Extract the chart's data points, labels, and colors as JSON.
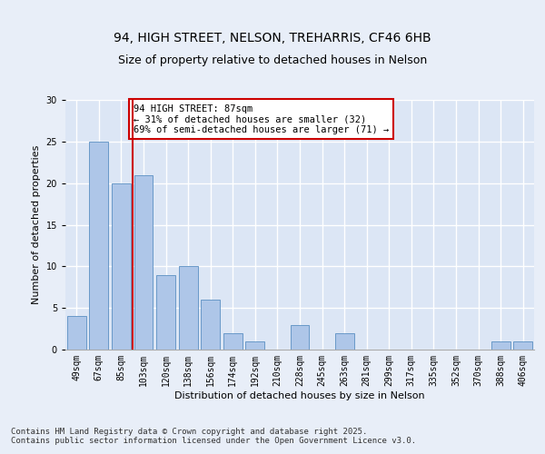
{
  "title_line1": "94, HIGH STREET, NELSON, TREHARRIS, CF46 6HB",
  "title_line2": "Size of property relative to detached houses in Nelson",
  "xlabel": "Distribution of detached houses by size in Nelson",
  "ylabel": "Number of detached properties",
  "bar_labels": [
    "49sqm",
    "67sqm",
    "85sqm",
    "103sqm",
    "120sqm",
    "138sqm",
    "156sqm",
    "174sqm",
    "192sqm",
    "210sqm",
    "228sqm",
    "245sqm",
    "263sqm",
    "281sqm",
    "299sqm",
    "317sqm",
    "335sqm",
    "352sqm",
    "370sqm",
    "388sqm",
    "406sqm"
  ],
  "bar_values": [
    4,
    25,
    20,
    21,
    9,
    10,
    6,
    2,
    1,
    0,
    3,
    0,
    2,
    0,
    0,
    0,
    0,
    0,
    0,
    1,
    1
  ],
  "bar_color": "#aec6e8",
  "bar_edge_color": "#5a8fc2",
  "background_color": "#dce6f5",
  "plot_bg_color": "#dce6f5",
  "fig_bg_color": "#e8eef8",
  "grid_color": "#ffffff",
  "ylim": [
    0,
    30
  ],
  "yticks": [
    0,
    5,
    10,
    15,
    20,
    25,
    30
  ],
  "vline_index": 2,
  "vline_color": "#cc0000",
  "annotation_text": "94 HIGH STREET: 87sqm\n← 31% of detached houses are smaller (32)\n69% of semi-detached houses are larger (71) →",
  "annotation_box_color": "#ffffff",
  "annotation_box_edge": "#cc0000",
  "footer_text": "Contains HM Land Registry data © Crown copyright and database right 2025.\nContains public sector information licensed under the Open Government Licence v3.0.",
  "title_fontsize": 10,
  "subtitle_fontsize": 9,
  "axis_label_fontsize": 8,
  "tick_fontsize": 7,
  "annotation_fontsize": 7.5,
  "footer_fontsize": 6.5
}
